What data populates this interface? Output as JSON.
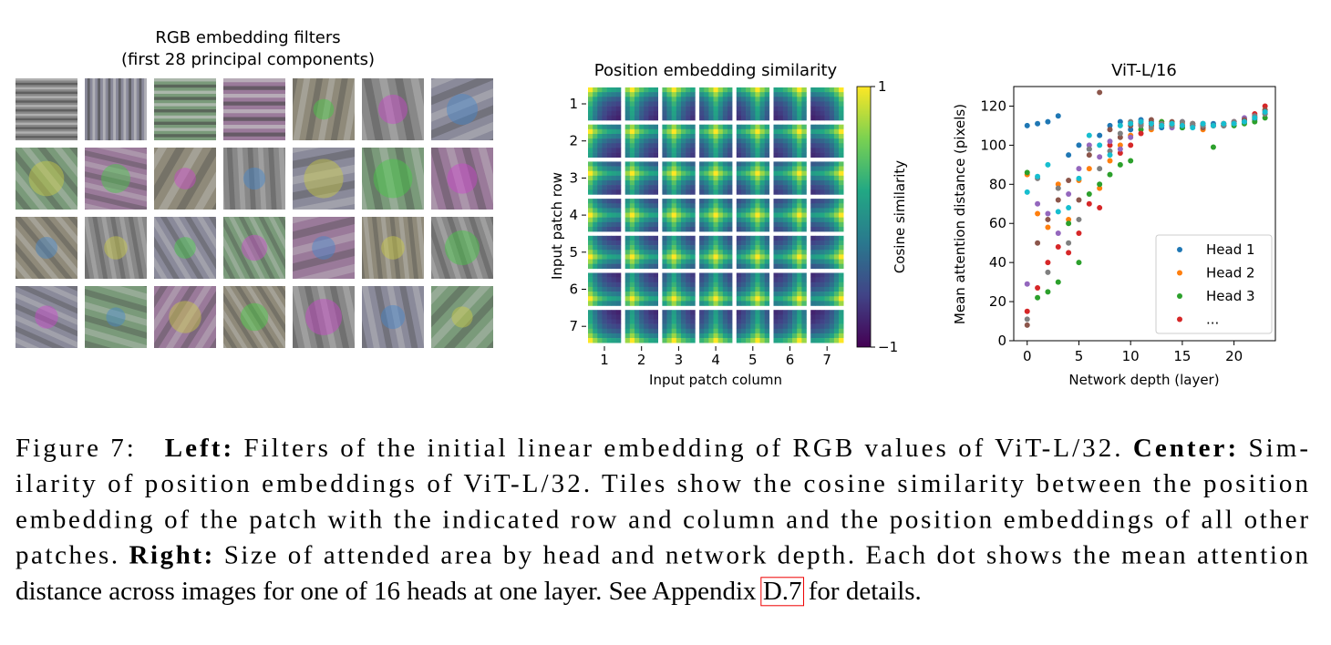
{
  "left_panel": {
    "title": [
      "RGB embedding filters",
      "(first 28 principal components)"
    ]
  },
  "chart_data": [
    {
      "type": "heatmap",
      "title": "Position embedding similarity",
      "xlabel": "Input patch column",
      "ylabel": "Input patch row",
      "xticks": [
        1,
        2,
        3,
        4,
        5,
        6,
        7
      ],
      "yticks": [
        1,
        2,
        3,
        4,
        5,
        6,
        7
      ],
      "row_similarity": [
        1,
        0.4,
        -0.1,
        -0.4,
        -0.6,
        -0.7,
        -0.8
      ],
      "column_similarity": [
        1,
        0.4,
        -0.1,
        -0.4,
        -0.6,
        -0.7,
        -0.8
      ],
      "colormap": "viridis",
      "colorbar_label": "Cosine similarity",
      "clim": [
        -1,
        1
      ],
      "cticks": [
        {
          "value": 1,
          "label": "1"
        },
        {
          "value": -1,
          "label": "−1"
        }
      ]
    },
    {
      "type": "scatter",
      "title": "ViT-L/16",
      "xlabel": "Network depth (layer)",
      "ylabel": "Mean attention distance (pixels)",
      "x": [
        0,
        1,
        2,
        3,
        4,
        5,
        6,
        7,
        8,
        9,
        10,
        11,
        12,
        13,
        14,
        15,
        16,
        17,
        18,
        19,
        20,
        21,
        22,
        23
      ],
      "xlim": [
        -1.3,
        24
      ],
      "ylim": [
        0,
        130
      ],
      "xticks": [
        0,
        5,
        10,
        15,
        20
      ],
      "yticks": [
        0,
        20,
        40,
        60,
        80,
        100,
        120
      ],
      "legend": "lower right",
      "series": [
        {
          "name": "Head 1",
          "color": "#1f77b4",
          "values": [
            110,
            111,
            112,
            115,
            95,
            100,
            98,
            105,
            110,
            112,
            108,
            113,
            112,
            109,
            111,
            109,
            110,
            110,
            111,
            110,
            111,
            112,
            113,
            116
          ]
        },
        {
          "name": "Head 2",
          "color": "#ff7f0e",
          "values": [
            85,
            65,
            58,
            80,
            62,
            82,
            88,
            78,
            92,
            100,
            105,
            110,
            108,
            112,
            110,
            111,
            110,
            108,
            110,
            110,
            111,
            112,
            114,
            118
          ]
        },
        {
          "name": "Head 3",
          "color": "#2ca02c",
          "values": [
            86,
            22,
            25,
            30,
            60,
            40,
            75,
            80,
            85,
            90,
            92,
            108,
            110,
            112,
            110,
            109,
            110,
            111,
            99,
            110,
            110,
            111,
            112,
            114
          ]
        },
        {
          "name": "...",
          "color": "#d62728",
          "values": [
            15,
            27,
            40,
            48,
            45,
            55,
            70,
            68,
            100,
            96,
            100,
            106,
            110,
            111,
            110,
            110,
            111,
            110,
            110,
            111,
            112,
            113,
            116,
            120
          ]
        },
        {
          "name": null,
          "color": "#9467bd",
          "values": [
            29,
            70,
            65,
            55,
            75,
            88,
            100,
            94,
            102,
            98,
            104,
            112,
            111,
            110,
            109,
            112,
            110,
            111,
            110,
            110,
            112,
            114,
            115,
            117
          ]
        },
        {
          "name": null,
          "color": "#8c564b",
          "values": [
            8,
            50,
            62,
            72,
            82,
            72,
            95,
            127,
            108,
            104,
            110,
            111,
            113,
            110,
            112,
            110,
            111,
            109,
            110,
            111,
            111,
            113,
            114,
            118
          ]
        },
        {
          "name": null,
          "color": "#7f7f7f",
          "values": [
            11,
            83,
            35,
            78,
            50,
            62,
            98,
            88,
            97,
            106,
            112,
            110,
            109,
            111,
            110,
            112,
            111,
            110,
            110,
            110,
            112,
            112,
            115,
            116
          ]
        },
        {
          "name": null,
          "color": "#17becf",
          "values": [
            76,
            84,
            90,
            66,
            68,
            83,
            105,
            100,
            95,
            110,
            111,
            112,
            111,
            110,
            111,
            110,
            109,
            111,
            110,
            111,
            111,
            112,
            114,
            117
          ]
        }
      ]
    }
  ],
  "caption": {
    "lines": [
      [
        {
          "text": "Figure 7:   ",
          "bold": false
        },
        {
          "text": "Left:",
          "bold": true
        },
        {
          "text": " Filters of the initial linear embedding of RGB values of ViT-L/32. ",
          "bold": false
        },
        {
          "text": "Center:",
          "bold": true
        },
        {
          "text": " Sim-",
          "bold": false
        }
      ],
      [
        {
          "text": "ilarity of position embeddings of ViT-L/32. Tiles show the cosine similarity between the position",
          "bold": false
        }
      ],
      [
        {
          "text": "embedding of the patch with the indicated row and column and the position embeddings of all other",
          "bold": false
        }
      ],
      [
        {
          "text": "patches. ",
          "bold": false
        },
        {
          "text": "Right:",
          "bold": true
        },
        {
          "text": " Size of attended area by head and network depth. Each dot shows the mean attention",
          "bold": false
        }
      ],
      [
        {
          "text": "distance across images for one of 16 heads at one layer. See Appendix ",
          "bold": false
        },
        {
          "text": "D.7",
          "bold": false,
          "link": true
        },
        {
          "text": " for details.",
          "bold": false
        }
      ]
    ]
  }
}
